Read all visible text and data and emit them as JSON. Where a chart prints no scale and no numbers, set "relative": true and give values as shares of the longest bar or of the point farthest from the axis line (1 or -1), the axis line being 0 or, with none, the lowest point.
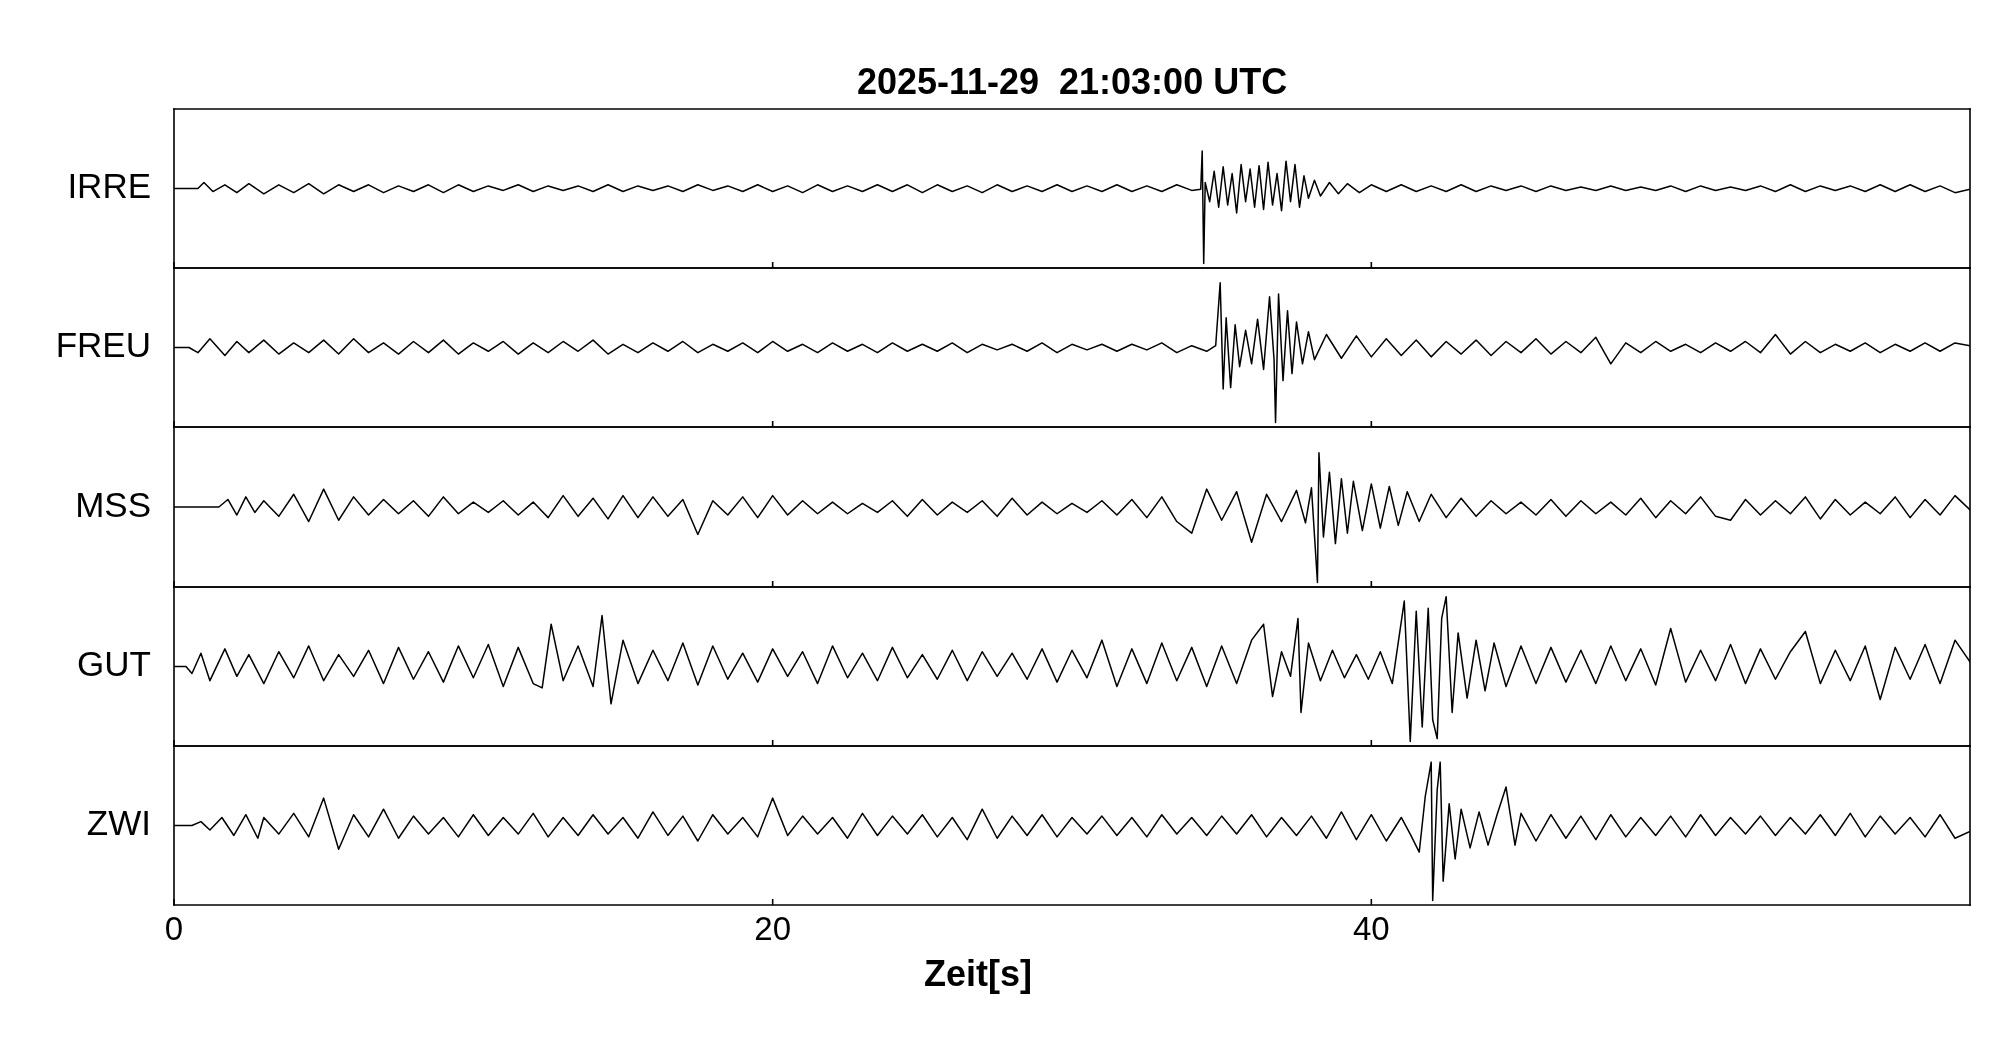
{
  "chart_data": [
    {
      "type": "line",
      "relative": true,
      "title": "2025-11-29  21:03:00 UTC",
      "xlim": [
        0,
        60
      ],
      "xticks": [
        0,
        20,
        40
      ],
      "tick_labels": false,
      "x": [
        0,
        0.8,
        1,
        1.3,
        1.7,
        2.1,
        2.5,
        3,
        3.5,
        4,
        4.5,
        5,
        5.5,
        6,
        6.5,
        7,
        7.5,
        8,
        8.5,
        9,
        9.5,
        10,
        10.5,
        11,
        11.5,
        12,
        12.5,
        13,
        13.5,
        14,
        14.5,
        15,
        15.5,
        16,
        16.5,
        17,
        17.5,
        18,
        18.5,
        19,
        19.5,
        20,
        20.5,
        21,
        21.5,
        22,
        22.5,
        23,
        23.5,
        24,
        24.5,
        25,
        25.5,
        26,
        26.5,
        27,
        27.5,
        28,
        28.5,
        29,
        29.5,
        30,
        30.5,
        31,
        31.5,
        32,
        32.5,
        33,
        33.5,
        34,
        34.3,
        34.35,
        34.4,
        34.45,
        34.6,
        34.75,
        34.9,
        35.05,
        35.2,
        35.35,
        35.5,
        35.65,
        35.8,
        35.95,
        36.1,
        36.25,
        36.4,
        36.55,
        36.7,
        36.85,
        37,
        37.15,
        37.3,
        37.45,
        37.6,
        37.75,
        37.9,
        38.1,
        38.3,
        38.6,
        38.9,
        39.2,
        39.6,
        40,
        40.5,
        41,
        41.5,
        42,
        42.5,
        43,
        43.5,
        44,
        44.5,
        45,
        45.5,
        46,
        46.5,
        47,
        47.5,
        48,
        48.5,
        49,
        49.5,
        50,
        50.5,
        51,
        51.5,
        52,
        52.5,
        53,
        53.5,
        54,
        54.5,
        55,
        55.5,
        56,
        56.5,
        57,
        57.5,
        58,
        58.5,
        59,
        59.5,
        60
      ],
      "series": [
        {
          "name": "IRRE",
          "color": "#000000",
          "values": [
            0.667,
            0.667,
            0.72,
            0.64,
            0.7,
            0.63,
            0.71,
            0.62,
            0.7,
            0.63,
            0.71,
            0.62,
            0.7,
            0.64,
            0.7,
            0.63,
            0.69,
            0.64,
            0.7,
            0.63,
            0.7,
            0.64,
            0.69,
            0.65,
            0.7,
            0.64,
            0.69,
            0.65,
            0.69,
            0.64,
            0.7,
            0.64,
            0.69,
            0.65,
            0.69,
            0.64,
            0.7,
            0.65,
            0.69,
            0.64,
            0.7,
            0.64,
            0.69,
            0.63,
            0.7,
            0.64,
            0.69,
            0.64,
            0.7,
            0.64,
            0.7,
            0.63,
            0.7,
            0.64,
            0.69,
            0.63,
            0.7,
            0.64,
            0.69,
            0.64,
            0.7,
            0.64,
            0.69,
            0.64,
            0.7,
            0.64,
            0.69,
            0.64,
            0.7,
            0.65,
            0.66,
            1.0,
            0.0,
            0.72,
            0.55,
            0.82,
            0.5,
            0.86,
            0.52,
            0.8,
            0.45,
            0.88,
            0.55,
            0.84,
            0.5,
            0.87,
            0.48,
            0.9,
            0.52,
            0.8,
            0.47,
            0.91,
            0.55,
            0.88,
            0.5,
            0.78,
            0.58,
            0.74,
            0.6,
            0.72,
            0.62,
            0.71,
            0.63,
            0.7,
            0.64,
            0.7,
            0.64,
            0.69,
            0.64,
            0.7,
            0.64,
            0.69,
            0.65,
            0.69,
            0.64,
            0.69,
            0.65,
            0.68,
            0.65,
            0.69,
            0.65,
            0.68,
            0.65,
            0.69,
            0.64,
            0.69,
            0.65,
            0.68,
            0.65,
            0.69,
            0.64,
            0.7,
            0.64,
            0.69,
            0.65,
            0.69,
            0.64,
            0.7,
            0.64,
            0.7,
            0.64,
            0.69,
            0.63,
            0.66
          ]
        }
      ]
    },
    {
      "type": "line",
      "relative": true,
      "xlim": [
        0,
        60
      ],
      "xticks": [
        0,
        20,
        40
      ],
      "tick_labels": false,
      "x": [
        0,
        0.5,
        0.8,
        1.2,
        1.7,
        2.1,
        2.5,
        3,
        3.5,
        4,
        4.5,
        5,
        5.5,
        6,
        6.5,
        7,
        7.5,
        8,
        8.5,
        9,
        9.5,
        10,
        10.5,
        11,
        11.5,
        12,
        12.5,
        13,
        13.5,
        14,
        14.5,
        15,
        15.5,
        16,
        16.5,
        17,
        17.5,
        18,
        18.5,
        19,
        19.5,
        20,
        20.5,
        21,
        21.5,
        22,
        22.5,
        23,
        23.5,
        24,
        24.5,
        25,
        25.5,
        26,
        26.5,
        27,
        27.5,
        28,
        28.5,
        29,
        29.5,
        30,
        30.5,
        31,
        31.5,
        32,
        32.5,
        33,
        33.5,
        34,
        34.5,
        34.8,
        34.95,
        35.05,
        35.15,
        35.3,
        35.45,
        35.6,
        35.8,
        36,
        36.2,
        36.4,
        36.6,
        36.75,
        36.8,
        36.9,
        37.05,
        37.2,
        37.35,
        37.5,
        37.7,
        37.9,
        38.1,
        38.5,
        39,
        39.5,
        40,
        40.5,
        41,
        41.5,
        42,
        42.5,
        43,
        43.5,
        44,
        44.5,
        45,
        45.5,
        46,
        46.5,
        47,
        47.5,
        48,
        48.5,
        49,
        49.5,
        50,
        50.5,
        51,
        51.5,
        52,
        52.5,
        53,
        53.5,
        54,
        54.5,
        55,
        55.5,
        56,
        56.5,
        57,
        57.5,
        58,
        58.5,
        59,
        59.5,
        60
      ],
      "series": [
        {
          "name": "FREU",
          "color": "#000000",
          "values": [
            0.537,
            0.537,
            0.5,
            0.6,
            0.48,
            0.58,
            0.5,
            0.59,
            0.49,
            0.57,
            0.5,
            0.59,
            0.49,
            0.6,
            0.5,
            0.57,
            0.49,
            0.58,
            0.5,
            0.59,
            0.49,
            0.57,
            0.51,
            0.58,
            0.49,
            0.57,
            0.5,
            0.58,
            0.51,
            0.59,
            0.49,
            0.56,
            0.5,
            0.57,
            0.51,
            0.58,
            0.5,
            0.56,
            0.51,
            0.57,
            0.5,
            0.58,
            0.51,
            0.56,
            0.5,
            0.57,
            0.51,
            0.56,
            0.5,
            0.57,
            0.51,
            0.56,
            0.51,
            0.57,
            0.5,
            0.56,
            0.52,
            0.56,
            0.51,
            0.57,
            0.5,
            0.56,
            0.52,
            0.56,
            0.51,
            0.56,
            0.52,
            0.57,
            0.5,
            0.55,
            0.51,
            0.55,
            1.0,
            0.24,
            0.75,
            0.25,
            0.7,
            0.4,
            0.66,
            0.42,
            0.74,
            0.38,
            0.9,
            0.45,
            0.0,
            0.92,
            0.3,
            0.8,
            0.35,
            0.72,
            0.42,
            0.65,
            0.45,
            0.63,
            0.46,
            0.62,
            0.47,
            0.6,
            0.48,
            0.59,
            0.47,
            0.58,
            0.49,
            0.59,
            0.48,
            0.58,
            0.5,
            0.6,
            0.49,
            0.58,
            0.5,
            0.61,
            0.42,
            0.57,
            0.5,
            0.58,
            0.51,
            0.56,
            0.5,
            0.57,
            0.51,
            0.58,
            0.5,
            0.63,
            0.49,
            0.58,
            0.5,
            0.56,
            0.51,
            0.57,
            0.5,
            0.56,
            0.51,
            0.57,
            0.51,
            0.57,
            0.55
          ]
        }
      ]
    },
    {
      "type": "line",
      "relative": true,
      "xlim": [
        0,
        60
      ],
      "xticks": [
        0,
        20,
        40
      ],
      "tick_labels": false,
      "x": [
        0,
        1.5,
        1.8,
        2.1,
        2.4,
        2.7,
        3,
        3.5,
        4,
        4.5,
        5,
        5.5,
        6,
        6.5,
        7,
        7.5,
        8,
        8.5,
        9,
        9.5,
        10,
        10.5,
        11,
        11.5,
        12,
        12.5,
        13,
        13.5,
        14,
        14.5,
        15,
        15.5,
        16,
        16.5,
        17,
        17.5,
        18,
        18.5,
        19,
        19.5,
        20,
        20.5,
        21,
        21.5,
        22,
        22.5,
        23,
        23.5,
        24,
        24.5,
        25,
        25.5,
        26,
        26.5,
        27,
        27.5,
        28,
        28.5,
        29,
        29.5,
        30,
        30.5,
        31,
        31.5,
        32,
        32.5,
        33,
        33.5,
        34,
        34.5,
        35,
        35.5,
        36,
        36.5,
        37,
        37.5,
        37.8,
        38,
        38.2,
        38.25,
        38.4,
        38.6,
        38.8,
        39,
        39.2,
        39.4,
        39.7,
        40,
        40.3,
        40.6,
        40.9,
        41.2,
        41.6,
        42,
        42.5,
        43,
        43.5,
        44,
        44.5,
        45,
        45.5,
        46,
        46.5,
        47,
        47.5,
        48,
        48.5,
        49,
        49.5,
        50,
        50.5,
        51,
        51.5,
        52,
        52.5,
        53,
        53.5,
        54,
        54.5,
        55,
        55.5,
        56,
        56.5,
        57,
        57.5,
        58,
        58.5,
        59,
        59.5,
        60
      ],
      "series": [
        {
          "name": "MSS",
          "color": "#000000",
          "values": [
            0.582,
            0.582,
            0.64,
            0.52,
            0.66,
            0.54,
            0.63,
            0.51,
            0.68,
            0.47,
            0.72,
            0.48,
            0.66,
            0.52,
            0.64,
            0.53,
            0.63,
            0.51,
            0.66,
            0.53,
            0.62,
            0.54,
            0.63,
            0.52,
            0.62,
            0.5,
            0.67,
            0.51,
            0.65,
            0.49,
            0.67,
            0.5,
            0.66,
            0.51,
            0.64,
            0.37,
            0.63,
            0.52,
            0.66,
            0.5,
            0.67,
            0.52,
            0.63,
            0.53,
            0.62,
            0.53,
            0.61,
            0.54,
            0.63,
            0.51,
            0.64,
            0.52,
            0.62,
            0.54,
            0.63,
            0.51,
            0.65,
            0.52,
            0.62,
            0.53,
            0.61,
            0.54,
            0.63,
            0.52,
            0.64,
            0.5,
            0.66,
            0.47,
            0.38,
            0.72,
            0.48,
            0.7,
            0.31,
            0.68,
            0.47,
            0.71,
            0.46,
            0.73,
            0.0,
            1.0,
            0.35,
            0.85,
            0.3,
            0.8,
            0.38,
            0.78,
            0.4,
            0.76,
            0.42,
            0.74,
            0.44,
            0.7,
            0.47,
            0.68,
            0.5,
            0.65,
            0.51,
            0.63,
            0.53,
            0.62,
            0.52,
            0.64,
            0.51,
            0.63,
            0.53,
            0.62,
            0.52,
            0.65,
            0.5,
            0.63,
            0.53,
            0.66,
            0.51,
            0.48,
            0.64,
            0.52,
            0.63,
            0.53,
            0.66,
            0.49,
            0.64,
            0.52,
            0.62,
            0.53,
            0.66,
            0.5,
            0.64,
            0.52,
            0.67,
            0.56
          ]
        }
      ]
    },
    {
      "type": "line",
      "relative": true,
      "xlim": [
        0,
        60
      ],
      "xticks": [
        0,
        20,
        40
      ],
      "tick_labels": false,
      "x": [
        0,
        0.4,
        0.6,
        0.9,
        1.2,
        1.7,
        2.1,
        2.5,
        3,
        3.5,
        4,
        4.5,
        5,
        5.5,
        6,
        6.5,
        7,
        7.5,
        8,
        8.5,
        9,
        9.5,
        10,
        10.5,
        11,
        11.5,
        12,
        12.3,
        12.6,
        13,
        13.5,
        14,
        14.3,
        14.6,
        15,
        15.5,
        16,
        16.5,
        17,
        17.5,
        18,
        18.5,
        19,
        19.5,
        20,
        20.5,
        21,
        21.5,
        22,
        22.5,
        23,
        23.5,
        24,
        24.5,
        25,
        25.5,
        26,
        26.5,
        27,
        27.5,
        28,
        28.5,
        29,
        29.5,
        30,
        30.5,
        31,
        31.5,
        32,
        32.5,
        33,
        33.5,
        34,
        34.5,
        35,
        35.5,
        36,
        36.4,
        36.7,
        37,
        37.3,
        37.55,
        37.65,
        37.9,
        38.3,
        38.7,
        39.1,
        39.5,
        39.9,
        40.3,
        40.7,
        41.1,
        41.3,
        41.5,
        41.7,
        41.9,
        42.05,
        42.2,
        42.35,
        42.5,
        42.7,
        42.9,
        43.2,
        43.5,
        43.8,
        44.1,
        44.5,
        45,
        45.5,
        46,
        46.5,
        47,
        47.5,
        48,
        48.5,
        49,
        49.5,
        50,
        50.5,
        51,
        51.5,
        52,
        52.5,
        53,
        53.5,
        54,
        54.5,
        55,
        55.5,
        56,
        56.5,
        57,
        57.5,
        58,
        58.5,
        59,
        59.5,
        60
      ],
      "series": [
        {
          "name": "GUT",
          "color": "#000000",
          "values": [
            0.518,
            0.518,
            0.47,
            0.61,
            0.42,
            0.64,
            0.45,
            0.6,
            0.4,
            0.62,
            0.44,
            0.66,
            0.42,
            0.6,
            0.45,
            0.63,
            0.4,
            0.65,
            0.43,
            0.62,
            0.41,
            0.66,
            0.44,
            0.67,
            0.38,
            0.65,
            0.4,
            0.37,
            0.81,
            0.42,
            0.66,
            0.38,
            0.87,
            0.26,
            0.7,
            0.4,
            0.63,
            0.42,
            0.68,
            0.39,
            0.66,
            0.43,
            0.61,
            0.41,
            0.64,
            0.45,
            0.62,
            0.4,
            0.66,
            0.44,
            0.61,
            0.42,
            0.65,
            0.44,
            0.6,
            0.43,
            0.63,
            0.42,
            0.62,
            0.45,
            0.61,
            0.43,
            0.64,
            0.41,
            0.63,
            0.44,
            0.7,
            0.38,
            0.64,
            0.4,
            0.68,
            0.42,
            0.65,
            0.38,
            0.66,
            0.4,
            0.7,
            0.81,
            0.31,
            0.62,
            0.45,
            0.85,
            0.2,
            0.68,
            0.42,
            0.63,
            0.44,
            0.6,
            0.43,
            0.62,
            0.4,
            0.97,
            0.0,
            0.9,
            0.1,
            0.92,
            0.15,
            0.02,
            0.85,
            1.0,
            0.2,
            0.75,
            0.3,
            0.7,
            0.35,
            0.68,
            0.38,
            0.66,
            0.4,
            0.65,
            0.41,
            0.63,
            0.4,
            0.66,
            0.42,
            0.64,
            0.39,
            0.78,
            0.41,
            0.63,
            0.42,
            0.67,
            0.4,
            0.64,
            0.43,
            0.62,
            0.76,
            0.4,
            0.63,
            0.42,
            0.66,
            0.29,
            0.65,
            0.43,
            0.67,
            0.4,
            0.7,
            0.55
          ]
        }
      ]
    },
    {
      "type": "line",
      "relative": true,
      "xlabel": "Zeit[s]",
      "xlim": [
        0,
        60
      ],
      "xticks": [
        0,
        20,
        40
      ],
      "tick_labels": "x",
      "x": [
        0,
        0.6,
        0.9,
        1.2,
        1.6,
        2,
        2.4,
        2.8,
        3,
        3.5,
        4,
        4.5,
        5,
        5.5,
        6,
        6.5,
        7,
        7.5,
        8,
        8.5,
        9,
        9.5,
        10,
        10.5,
        11,
        11.5,
        12,
        12.5,
        13,
        13.5,
        14,
        14.5,
        15,
        15.5,
        16,
        16.5,
        17,
        17.5,
        18,
        18.5,
        19,
        19.5,
        20,
        20.5,
        21,
        21.5,
        22,
        22.5,
        23,
        23.5,
        24,
        24.5,
        25,
        25.5,
        26,
        26.5,
        27,
        27.5,
        28,
        28.5,
        29,
        29.5,
        30,
        30.5,
        31,
        31.5,
        32,
        32.5,
        33,
        33.5,
        34,
        34.5,
        35,
        35.5,
        36,
        36.5,
        37,
        37.5,
        38,
        38.5,
        39,
        39.5,
        40,
        40.5,
        41,
        41.3,
        41.6,
        41.8,
        42,
        42.05,
        42.2,
        42.3,
        42.4,
        42.6,
        42.8,
        43,
        43.3,
        43.6,
        43.9,
        44.2,
        44.5,
        44.8,
        45,
        45.5,
        46,
        46.5,
        47,
        47.5,
        48,
        48.5,
        49,
        49.5,
        50,
        50.5,
        51,
        51.5,
        52,
        52.5,
        53,
        53.5,
        54,
        54.5,
        55,
        55.5,
        56,
        56.5,
        57,
        57.5,
        58,
        58.5,
        59,
        59.5,
        60
      ],
      "series": [
        {
          "name": "ZWI",
          "color": "#000000",
          "values": [
            0.542,
            0.542,
            0.57,
            0.51,
            0.6,
            0.47,
            0.62,
            0.45,
            0.6,
            0.48,
            0.63,
            0.46,
            0.74,
            0.37,
            0.62,
            0.46,
            0.66,
            0.45,
            0.61,
            0.48,
            0.6,
            0.46,
            0.62,
            0.47,
            0.6,
            0.48,
            0.63,
            0.46,
            0.6,
            0.47,
            0.62,
            0.48,
            0.6,
            0.45,
            0.64,
            0.47,
            0.61,
            0.43,
            0.62,
            0.48,
            0.6,
            0.46,
            0.74,
            0.47,
            0.61,
            0.48,
            0.6,
            0.45,
            0.63,
            0.47,
            0.61,
            0.48,
            0.62,
            0.46,
            0.6,
            0.44,
            0.66,
            0.45,
            0.61,
            0.47,
            0.62,
            0.46,
            0.6,
            0.48,
            0.61,
            0.47,
            0.6,
            0.46,
            0.62,
            0.48,
            0.6,
            0.47,
            0.61,
            0.48,
            0.62,
            0.46,
            0.6,
            0.47,
            0.61,
            0.45,
            0.64,
            0.44,
            0.62,
            0.43,
            0.6,
            0.48,
            0.35,
            0.75,
            1.0,
            0.0,
            0.8,
            1.0,
            0.14,
            0.7,
            0.3,
            0.66,
            0.38,
            0.64,
            0.4,
            0.62,
            0.82,
            0.4,
            0.63,
            0.43,
            0.62,
            0.45,
            0.61,
            0.44,
            0.62,
            0.46,
            0.6,
            0.47,
            0.61,
            0.46,
            0.62,
            0.47,
            0.6,
            0.48,
            0.61,
            0.47,
            0.6,
            0.48,
            0.62,
            0.47,
            0.63,
            0.46,
            0.61,
            0.48,
            0.6,
            0.46,
            0.62,
            0.45,
            0.5
          ]
        }
      ]
    }
  ]
}
